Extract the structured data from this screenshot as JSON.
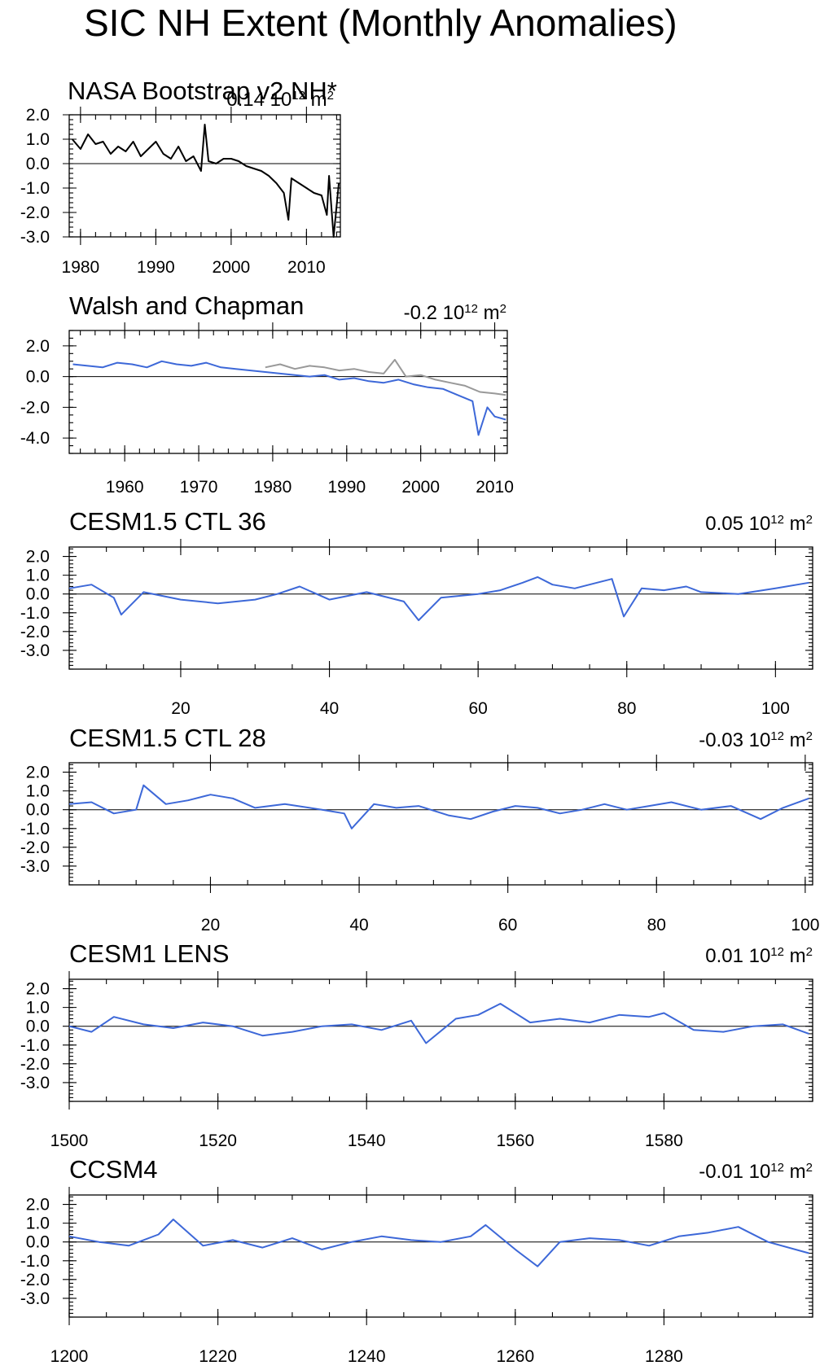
{
  "page": {
    "title": "SIC NH Extent (Monthly Anomalies)"
  },
  "colors": {
    "obs_line": "#000000",
    "model_line": "#3d68d8",
    "secondary_line": "#999999"
  },
  "chart_data": [
    {
      "type": "line",
      "title": "NASA Bootstrap v2 NH*",
      "mean_value": "0.14",
      "mean_unit": "10",
      "mean_exp": "12",
      "mean_suffix": "m",
      "mean_suffix_exp": "2",
      "xlim": [
        1978.5,
        2014.5
      ],
      "ylim": [
        -3.0,
        2.0
      ],
      "x_ticks": [
        1980,
        1990,
        2000,
        2010
      ],
      "y_ticks": [
        "2.0",
        "1.0",
        "0.0",
        "-1.0",
        "-2.0",
        "-3.0"
      ],
      "series": [
        {
          "color": "obs_line",
          "x": [
            1978.9,
            1980,
            1981,
            1982,
            1983,
            1984,
            1985,
            1986,
            1987,
            1988,
            1989,
            1990,
            1991,
            1992,
            1993,
            1994,
            1995,
            1996,
            1996.5,
            1997,
            1998,
            1999,
            2000,
            2001,
            2002,
            2003,
            2004,
            2005,
            2006,
            2007,
            2007.6,
            2008,
            2009,
            2010,
            2011,
            2012,
            2012.7,
            2013,
            2013.6,
            2014.3
          ],
          "y": [
            1.0,
            0.6,
            1.2,
            0.8,
            0.9,
            0.4,
            0.7,
            0.5,
            0.9,
            0.3,
            0.6,
            0.9,
            0.4,
            0.2,
            0.7,
            0.1,
            0.3,
            -0.3,
            1.6,
            0.1,
            0.0,
            0.2,
            0.2,
            0.1,
            -0.1,
            -0.2,
            -0.3,
            -0.5,
            -0.8,
            -1.2,
            -2.3,
            -0.6,
            -0.8,
            -1.0,
            -1.2,
            -1.3,
            -2.1,
            -0.5,
            -3.0,
            -0.8
          ]
        }
      ]
    },
    {
      "type": "line",
      "title": "Walsh and Chapman",
      "mean_value": "-0.2",
      "mean_unit": "10",
      "mean_exp": "12",
      "mean_suffix": "m",
      "mean_suffix_exp": "2",
      "xlim": [
        1952.5,
        2011.7
      ],
      "ylim": [
        -5.0,
        3.0
      ],
      "x_ticks": [
        1960,
        1970,
        1980,
        1990,
        2000,
        2010
      ],
      "y_ticks": [
        "2.0",
        "0.0",
        "-2.0",
        "-4.0"
      ],
      "series": [
        {
          "color": "model_line",
          "x": [
            1953,
            1955,
            1957,
            1959,
            1961,
            1963,
            1965,
            1967,
            1969,
            1971,
            1973,
            1975,
            1977,
            1979,
            1981,
            1983,
            1985,
            1987,
            1989,
            1991,
            1993,
            1995,
            1997,
            1999,
            2001,
            2003,
            2005,
            2007,
            2007.8,
            2009,
            2010,
            2011.5
          ],
          "y": [
            0.8,
            0.7,
            0.6,
            0.9,
            0.8,
            0.6,
            1.0,
            0.8,
            0.7,
            0.9,
            0.6,
            0.5,
            0.4,
            0.3,
            0.2,
            0.1,
            0.0,
            0.1,
            -0.2,
            -0.1,
            -0.3,
            -0.4,
            -0.2,
            -0.5,
            -0.7,
            -0.8,
            -1.2,
            -1.6,
            -3.8,
            -2.0,
            -2.6,
            -2.8
          ]
        },
        {
          "color": "secondary_line",
          "x": [
            1979,
            1981,
            1983,
            1985,
            1987,
            1989,
            1991,
            1993,
            1995,
            1996.5,
            1998,
            2000,
            2002,
            2004,
            2006,
            2008,
            2010,
            2011.5
          ],
          "y": [
            0.6,
            0.8,
            0.5,
            0.7,
            0.6,
            0.4,
            0.5,
            0.3,
            0.2,
            1.1,
            0.0,
            0.1,
            -0.2,
            -0.4,
            -0.6,
            -1.0,
            -1.1,
            -1.2
          ]
        }
      ]
    },
    {
      "type": "line",
      "title": "CESM1.5 CTL 36",
      "mean_value": "0.05",
      "mean_unit": "10",
      "mean_exp": "12",
      "mean_suffix": "m",
      "mean_suffix_exp": "2",
      "xlim": [
        5,
        105
      ],
      "ylim": [
        -4.0,
        2.5
      ],
      "x_ticks": [
        20,
        40,
        60,
        80,
        100
      ],
      "y_ticks": [
        "2.0",
        "1.0",
        "0.0",
        "-1.0",
        "-2.0",
        "-3.0"
      ],
      "series": [
        {
          "color": "model_line",
          "x": [
            5,
            8,
            11,
            12,
            15,
            20,
            25,
            30,
            33,
            36,
            40,
            45,
            50,
            52,
            55,
            60,
            63,
            66,
            68,
            70,
            73,
            76,
            78,
            79.6,
            82,
            85,
            88,
            90,
            95,
            100,
            104.5
          ],
          "y": [
            0.3,
            0.5,
            -0.2,
            -1.1,
            0.1,
            -0.3,
            -0.5,
            -0.3,
            0.0,
            0.4,
            -0.3,
            0.1,
            -0.4,
            -1.4,
            -0.2,
            0.0,
            0.2,
            0.6,
            0.9,
            0.5,
            0.3,
            0.6,
            0.8,
            -1.2,
            0.3,
            0.2,
            0.4,
            0.1,
            0.0,
            0.3,
            0.6
          ]
        }
      ]
    },
    {
      "type": "line",
      "title": "CESM1.5 CTL 28",
      "mean_value": "-0.03",
      "mean_unit": "10",
      "mean_exp": "12",
      "mean_suffix": "m",
      "mean_suffix_exp": "2",
      "xlim": [
        1,
        101
      ],
      "ylim": [
        -4.0,
        2.5
      ],
      "x_ticks": [
        20,
        40,
        60,
        80,
        100
      ],
      "y_ticks": [
        "2.0",
        "1.0",
        "0.0",
        "-1.0",
        "-2.0",
        "-3.0"
      ],
      "series": [
        {
          "color": "model_line",
          "x": [
            1,
            4,
            7,
            10,
            11,
            14,
            17,
            20,
            23,
            26,
            30,
            35,
            38,
            39,
            42,
            45,
            48,
            52,
            55,
            58,
            61,
            64,
            67,
            70,
            73,
            76,
            79,
            82,
            86,
            90,
            94,
            97,
            100.5
          ],
          "y": [
            0.3,
            0.4,
            -0.2,
            0.0,
            1.3,
            0.3,
            0.5,
            0.8,
            0.6,
            0.1,
            0.3,
            0.0,
            -0.2,
            -1.0,
            0.3,
            0.1,
            0.2,
            -0.3,
            -0.5,
            -0.1,
            0.2,
            0.1,
            -0.2,
            0.0,
            0.3,
            0.0,
            0.2,
            0.4,
            0.0,
            0.2,
            -0.5,
            0.1,
            0.6
          ]
        }
      ]
    },
    {
      "type": "line",
      "title": "CESM1 LENS",
      "mean_value": "0.01",
      "mean_unit": "10",
      "mean_exp": "12",
      "mean_suffix": "m",
      "mean_suffix_exp": "2",
      "xlim": [
        1500,
        1600
      ],
      "ylim": [
        -4.0,
        2.5
      ],
      "x_ticks": [
        1500,
        1520,
        1540,
        1560,
        1580
      ],
      "y_ticks": [
        "2.0",
        "1.0",
        "0.0",
        "-1.0",
        "-2.0",
        "-3.0"
      ],
      "series": [
        {
          "color": "model_line",
          "x": [
            1500,
            1503,
            1506,
            1510,
            1514,
            1518,
            1522,
            1526,
            1530,
            1534,
            1538,
            1542,
            1546,
            1548,
            1552,
            1555,
            1558,
            1562,
            1566,
            1570,
            1574,
            1578,
            1580,
            1584,
            1588,
            1592,
            1596,
            1599.5
          ],
          "y": [
            0.0,
            -0.3,
            0.5,
            0.1,
            -0.1,
            0.2,
            0.0,
            -0.5,
            -0.3,
            0.0,
            0.1,
            -0.2,
            0.3,
            -0.9,
            0.4,
            0.6,
            1.2,
            0.2,
            0.4,
            0.2,
            0.6,
            0.5,
            0.7,
            -0.2,
            -0.3,
            0.0,
            0.1,
            -0.4
          ]
        }
      ]
    },
    {
      "type": "line",
      "title": "CCSM4",
      "mean_value": "-0.01",
      "mean_unit": "10",
      "mean_exp": "12",
      "mean_suffix": "m",
      "mean_suffix_exp": "2",
      "xlim": [
        1200,
        1300
      ],
      "ylim": [
        -4.0,
        2.5
      ],
      "x_ticks": [
        1200,
        1220,
        1240,
        1260,
        1280
      ],
      "y_ticks": [
        "2.0",
        "1.0",
        "0.0",
        "-1.0",
        "-2.0",
        "-3.0"
      ],
      "series": [
        {
          "color": "model_line",
          "x": [
            1200,
            1204,
            1208,
            1212,
            1214,
            1218,
            1222,
            1226,
            1230,
            1234,
            1238,
            1242,
            1246,
            1250,
            1254,
            1256,
            1260,
            1263,
            1266,
            1270,
            1274,
            1278,
            1282,
            1286,
            1290,
            1294,
            1299.5
          ],
          "y": [
            0.3,
            0.0,
            -0.2,
            0.4,
            1.2,
            -0.2,
            0.1,
            -0.3,
            0.2,
            -0.4,
            0.0,
            0.3,
            0.1,
            0.0,
            0.3,
            0.9,
            -0.4,
            -1.3,
            0.0,
            0.2,
            0.1,
            -0.2,
            0.3,
            0.5,
            0.8,
            0.0,
            -0.6
          ]
        }
      ]
    }
  ]
}
